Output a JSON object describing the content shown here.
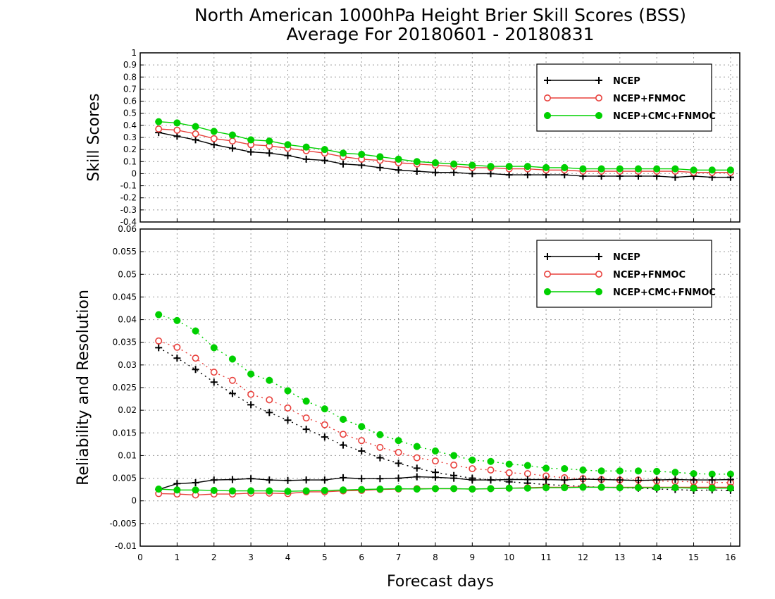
{
  "title_line1": "North American 1000hPa Height Brier Skill Scores (BSS)",
  "title_line2": "Average For 20180601 - 20180831",
  "xlabel": "Forecast days",
  "colors": {
    "ncep": "#000000",
    "ncep_fnmoc": "#e8403c",
    "ncep_cmc_fnmoc": "#00d000"
  },
  "chart_data": [
    {
      "type": "line",
      "ylabel": "Skill Scores",
      "ylim": [
        -0.4,
        1
      ],
      "yticks": [
        "-0.4",
        "-0.3",
        "-0.2",
        "-0.1",
        "0",
        "0.1",
        "0.2",
        "0.3",
        "0.4",
        "0.5",
        "0.6",
        "0.7",
        "0.8",
        "0.9",
        "1"
      ],
      "xlim": [
        0,
        16.25
      ],
      "xticks": [
        "0",
        "1",
        "2",
        "3",
        "4",
        "5",
        "6",
        "7",
        "8",
        "9",
        "10",
        "11",
        "12",
        "13",
        "14",
        "15",
        "16"
      ],
      "grid": true,
      "legend_position": "top-right",
      "legend": [
        "NCEP",
        "NCEP+FNMOC",
        "NCEP+CMC+FNMOC"
      ],
      "x": [
        0.5,
        1,
        1.5,
        2,
        2.5,
        3,
        3.5,
        4,
        4.5,
        5,
        5.5,
        6,
        6.5,
        7,
        7.5,
        8,
        8.5,
        9,
        9.5,
        10,
        10.5,
        11,
        11.5,
        12,
        12.5,
        13,
        13.5,
        14,
        14.5,
        15,
        15.5,
        16
      ],
      "series": [
        {
          "name": "NCEP",
          "marker": "plus",
          "style": "solid",
          "values": [
            0.34,
            0.31,
            0.28,
            0.24,
            0.21,
            0.18,
            0.17,
            0.15,
            0.12,
            0.11,
            0.08,
            0.07,
            0.05,
            0.03,
            0.02,
            0.01,
            0.01,
            0.0,
            0.0,
            -0.01,
            -0.01,
            -0.01,
            -0.01,
            -0.02,
            -0.02,
            -0.02,
            -0.02,
            -0.02,
            -0.03,
            -0.02,
            -0.03,
            -0.03
          ]
        },
        {
          "name": "NCEP+FNMOC",
          "marker": "circle-open",
          "style": "solid",
          "values": [
            0.37,
            0.36,
            0.33,
            0.29,
            0.27,
            0.24,
            0.23,
            0.21,
            0.19,
            0.17,
            0.14,
            0.12,
            0.11,
            0.09,
            0.08,
            0.07,
            0.06,
            0.05,
            0.05,
            0.04,
            0.04,
            0.03,
            0.03,
            0.02,
            0.02,
            0.02,
            0.02,
            0.02,
            0.02,
            0.01,
            0.01,
            0.01
          ]
        },
        {
          "name": "NCEP+CMC+FNMOC",
          "marker": "circle-filled",
          "style": "solid",
          "values": [
            0.43,
            0.42,
            0.39,
            0.35,
            0.32,
            0.28,
            0.27,
            0.24,
            0.22,
            0.2,
            0.17,
            0.16,
            0.14,
            0.12,
            0.1,
            0.09,
            0.08,
            0.07,
            0.06,
            0.06,
            0.06,
            0.05,
            0.05,
            0.04,
            0.04,
            0.04,
            0.04,
            0.04,
            0.04,
            0.03,
            0.03,
            0.03
          ]
        }
      ]
    },
    {
      "type": "line",
      "ylabel": "Reliability and Resolution",
      "ylim": [
        -0.01,
        0.06
      ],
      "yticks": [
        "-0.01",
        "-0.005",
        "0",
        "0.005",
        "0.01",
        "0.015",
        "0.02",
        "0.025",
        "0.03",
        "0.035",
        "0.04",
        "0.045",
        "0.05",
        "0.055",
        "0.06"
      ],
      "xlim": [
        0,
        16.25
      ],
      "xticks": [
        "0",
        "1",
        "2",
        "3",
        "4",
        "5",
        "6",
        "7",
        "8",
        "9",
        "10",
        "11",
        "12",
        "13",
        "14",
        "15",
        "16"
      ],
      "grid": true,
      "legend_position": "top-right",
      "legend": [
        "NCEP",
        "NCEP+FNMOC",
        "NCEP+CMC+FNMOC"
      ],
      "x": [
        0.5,
        1,
        1.5,
        2,
        2.5,
        3,
        3.5,
        4,
        4.5,
        5,
        5.5,
        6,
        6.5,
        7,
        7.5,
        8,
        8.5,
        9,
        9.5,
        10,
        10.5,
        11,
        11.5,
        12,
        12.5,
        13,
        13.5,
        14,
        14.5,
        15,
        15.5,
        16
      ],
      "series": [
        {
          "name": "NCEP",
          "kind": "resolution",
          "marker": "plus",
          "style": "dotted",
          "values": [
            0.0338,
            0.0315,
            0.029,
            0.0262,
            0.0237,
            0.0212,
            0.0195,
            0.0178,
            0.0158,
            0.0141,
            0.0123,
            0.011,
            0.0095,
            0.0083,
            0.0072,
            0.0063,
            0.0056,
            0.005,
            0.0046,
            0.0042,
            0.0039,
            0.0036,
            0.0034,
            0.0032,
            0.003,
            0.0029,
            0.0028,
            0.0026,
            0.0025,
            0.0023,
            0.0024,
            0.0023
          ]
        },
        {
          "name": "NCEP+FNMOC",
          "kind": "resolution",
          "marker": "circle-open",
          "style": "dotted",
          "values": [
            0.0353,
            0.0339,
            0.0315,
            0.0284,
            0.0266,
            0.0235,
            0.0223,
            0.0205,
            0.0183,
            0.0168,
            0.0147,
            0.0133,
            0.0118,
            0.0107,
            0.0095,
            0.0088,
            0.0079,
            0.0071,
            0.0068,
            0.0062,
            0.006,
            0.0055,
            0.0051,
            0.0049,
            0.0047,
            0.0046,
            0.0046,
            0.0044,
            0.0043,
            0.0042,
            0.0041,
            0.004
          ]
        },
        {
          "name": "NCEP+CMC+FNMOC",
          "kind": "resolution",
          "marker": "circle-filled",
          "style": "dotted",
          "values": [
            0.0411,
            0.0398,
            0.0375,
            0.0338,
            0.0313,
            0.028,
            0.0266,
            0.0243,
            0.022,
            0.0203,
            0.018,
            0.0164,
            0.0146,
            0.0133,
            0.012,
            0.011,
            0.01,
            0.009,
            0.0087,
            0.0081,
            0.0078,
            0.0072,
            0.0071,
            0.0068,
            0.0066,
            0.0066,
            0.0066,
            0.0065,
            0.0063,
            0.006,
            0.0059,
            0.0059
          ]
        },
        {
          "name": "NCEP",
          "kind": "reliability",
          "marker": "plus",
          "style": "solid",
          "values": [
            0.0025,
            0.0038,
            0.004,
            0.0046,
            0.0047,
            0.0049,
            0.0046,
            0.0045,
            0.0046,
            0.0046,
            0.0051,
            0.0049,
            0.0049,
            0.005,
            0.0053,
            0.0052,
            0.005,
            0.0046,
            0.0046,
            0.0047,
            0.0047,
            0.0047,
            0.0046,
            0.0048,
            0.0047,
            0.0046,
            0.0045,
            0.0046,
            0.0047,
            0.0046,
            0.0046,
            0.0047
          ]
        },
        {
          "name": "NCEP+FNMOC",
          "kind": "reliability",
          "marker": "circle-open",
          "style": "solid",
          "values": [
            0.0016,
            0.0015,
            0.0013,
            0.0015,
            0.0015,
            0.0017,
            0.0017,
            0.0016,
            0.002,
            0.002,
            0.0022,
            0.0023,
            0.0025,
            0.0026,
            0.0027,
            0.0027,
            0.0027,
            0.0026,
            0.0027,
            0.0028,
            0.0029,
            0.003,
            0.003,
            0.0031,
            0.003,
            0.003,
            0.003,
            0.003,
            0.003,
            0.003,
            0.003,
            0.003
          ]
        },
        {
          "name": "NCEP+CMC+FNMOC",
          "kind": "reliability",
          "marker": "circle-filled",
          "style": "solid",
          "values": [
            0.0026,
            0.0024,
            0.0024,
            0.0023,
            0.0022,
            0.0022,
            0.0022,
            0.0021,
            0.0022,
            0.0023,
            0.0024,
            0.0025,
            0.0026,
            0.0027,
            0.0026,
            0.0027,
            0.0027,
            0.0026,
            0.0027,
            0.0028,
            0.0028,
            0.0029,
            0.0029,
            0.003,
            0.003,
            0.0029,
            0.0029,
            0.0029,
            0.0029,
            0.0028,
            0.0028,
            0.0028
          ]
        }
      ]
    }
  ]
}
